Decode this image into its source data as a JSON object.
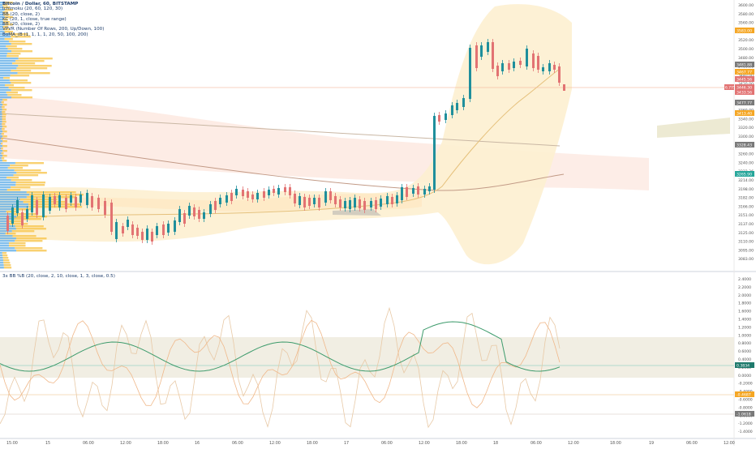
{
  "header": {
    "title": "Bitcoin / Dollar, 60, BITSTAMP",
    "indicators": [
      "Ichimoku (20, 60, 120, 30)",
      "BB (20, close, 2)",
      "KC (20, 1, close, true range)",
      "BB (20, close, 2)",
      "VPVR (Number Of Rows, 200, Up/Down, 100)",
      "BoMA_(B (1, 1, 1, 1, 20, 50, 100, 200)"
    ]
  },
  "oscillator": {
    "title": "3x BB %B (20, close, 2, 10, close, 1, 3, close, 0.5)"
  },
  "chart_data": [
    {
      "type": "candlestick",
      "name": "price-pane",
      "y_ticks": [
        3600,
        3580,
        3560,
        3540,
        3520,
        3500,
        3480,
        3460,
        3440,
        3420,
        3400,
        3380,
        3360,
        3340,
        3320,
        3300,
        3280,
        3260,
        3240,
        3222.36,
        3214,
        3198,
        3182,
        3166,
        3151,
        3137,
        3125,
        3110,
        3095,
        3083
      ],
      "price_tags": [
        {
          "label": "3583.00",
          "color": "#f5a623"
        },
        {
          "label": "3481.88",
          "color": "#7a7a7a"
        },
        {
          "label": "3467.77",
          "color": "#f5a623"
        },
        {
          "label": "3433.56",
          "color": "#e27373"
        },
        {
          "label": "3445.56",
          "color": "#e27373"
        },
        {
          "label": "3477.77",
          "color": "#7a7a7a"
        },
        {
          "label": "3413.40",
          "color": "#f5a623"
        },
        {
          "label": "3328.43",
          "color": "#7a7a7a"
        },
        {
          "label": "3265.90",
          "color": "#26a69a"
        }
      ],
      "current_price": {
        "label": "6.775",
        "value": "3446.30",
        "color": "#e27373"
      },
      "x_ticks": [
        "15:00",
        "15",
        "06:00",
        "12:00",
        "18:00",
        "16",
        "06:00",
        "12:00",
        "18:00",
        "17",
        "06:00",
        "12:00",
        "18:00",
        "18",
        "06:00",
        "12:00",
        "18:00",
        "19",
        "06:00",
        "12:00"
      ]
    },
    {
      "type": "line",
      "name": "oscillator-pane",
      "y_ticks": [
        "2.4000",
        "2.2000",
        "2.0000",
        "1.8000",
        "1.6000",
        "1.4000",
        "1.2000",
        "1.0000",
        "0.8000",
        "0.6000",
        "0.4000",
        "0.2000",
        "0.0000",
        "-0.2000",
        "-0.4000",
        "-0.6000",
        "-0.8000",
        "-1.0000",
        "-1.2000",
        "-1.4000"
      ],
      "value_tags": [
        {
          "label": "0.3834",
          "color": "#1f7a6c"
        },
        {
          "label": "-0.4687",
          "color": "#f5a623"
        },
        {
          "label": "-1.0618",
          "color": "#7a7a7a"
        }
      ]
    }
  ]
}
